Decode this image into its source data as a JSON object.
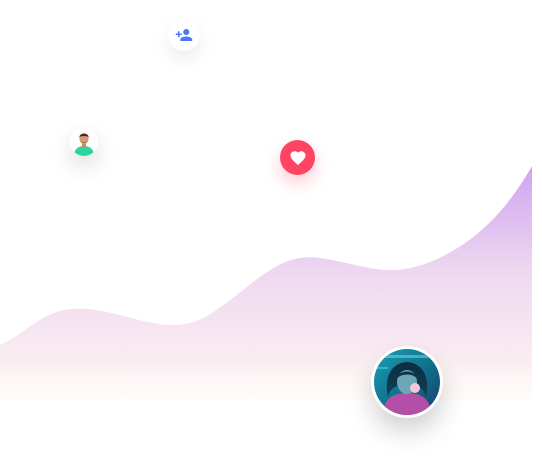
{
  "icons": {
    "add_user": "add-user-icon",
    "heart": "heart-icon",
    "avatar_small": "person-avatar",
    "avatar_large": "person-avatar"
  },
  "colors": {
    "background": "#ffffff",
    "add_user_icon": "#4d77f5",
    "heart_badge": "#ff4563",
    "wave_top": "#cfa3ef",
    "wave_mid": "#eed8f0",
    "wave_bottom": "#fff6f2"
  }
}
